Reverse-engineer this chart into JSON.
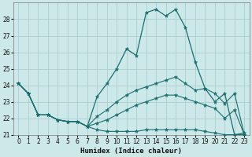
{
  "xlabel": "Humidex (Indice chaleur)",
  "background_color": "#cce8e8",
  "grid_color": "#aacece",
  "line_color": "#1a6e6e",
  "hours": [
    0,
    1,
    2,
    3,
    4,
    5,
    6,
    7,
    8,
    9,
    10,
    11,
    12,
    13,
    14,
    15,
    16,
    17,
    18,
    19,
    20,
    21,
    22,
    23
  ],
  "humidex_main": [
    24.1,
    23.5,
    22.2,
    22.2,
    21.9,
    21.8,
    21.8,
    21.5,
    23.3,
    24.1,
    25.0,
    26.2,
    25.8,
    28.4,
    28.6,
    28.2,
    28.6,
    27.5,
    25.4,
    23.8,
    23.0,
    23.5,
    21.0,
    21.1
  ],
  "line2": [
    24.1,
    23.5,
    22.2,
    22.2,
    21.9,
    21.8,
    21.8,
    21.5,
    22.1,
    22.5,
    23.0,
    23.4,
    23.7,
    23.9,
    24.1,
    24.3,
    24.5,
    24.1,
    23.7,
    23.8,
    23.5,
    22.9,
    23.5,
    21.0
  ],
  "line3": [
    24.1,
    23.5,
    22.2,
    22.2,
    21.9,
    21.8,
    21.8,
    21.5,
    21.7,
    21.9,
    22.2,
    22.5,
    22.8,
    23.0,
    23.2,
    23.4,
    23.4,
    23.2,
    23.0,
    22.8,
    22.6,
    22.0,
    22.5,
    21.0
  ],
  "line4": [
    24.1,
    23.5,
    22.2,
    22.2,
    21.9,
    21.8,
    21.8,
    21.5,
    21.3,
    21.2,
    21.2,
    21.2,
    21.2,
    21.3,
    21.3,
    21.3,
    21.3,
    21.3,
    21.3,
    21.2,
    21.1,
    21.0,
    21.0,
    21.0
  ],
  "ylim": [
    21,
    29
  ],
  "yticks": [
    21,
    22,
    23,
    24,
    25,
    26,
    27,
    28
  ],
  "xticks": [
    0,
    1,
    2,
    3,
    4,
    5,
    6,
    7,
    8,
    9,
    10,
    11,
    12,
    13,
    14,
    15,
    16,
    17,
    18,
    19,
    20,
    21,
    22,
    23
  ],
  "xlim": [
    -0.5,
    23.5
  ]
}
